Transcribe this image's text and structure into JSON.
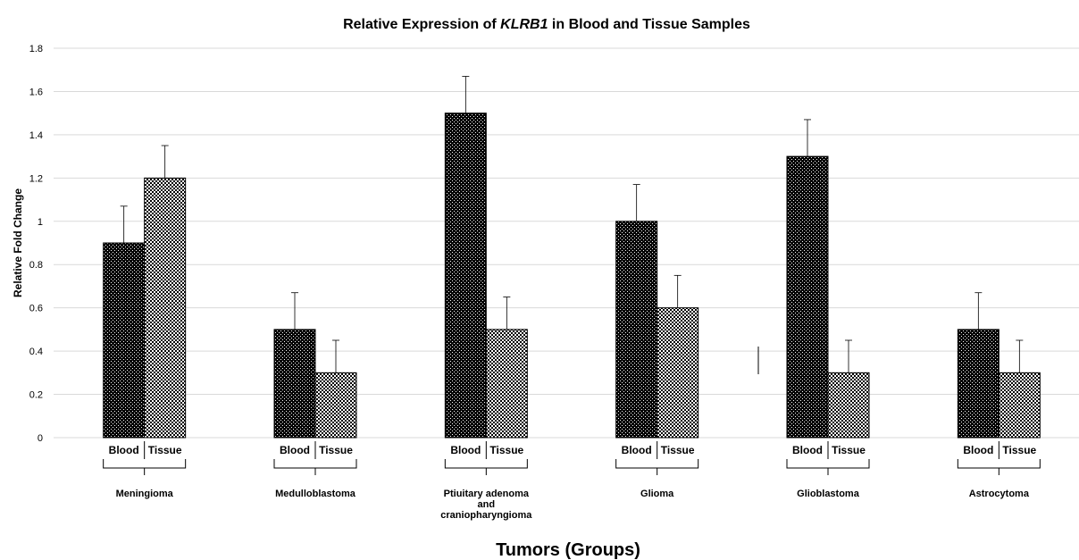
{
  "chart_data": {
    "type": "bar",
    "title_prefix": "Relative Expression of ",
    "title_gene": "KLRB1",
    "title_suffix": " in Blood and Tissue Samples",
    "xlabel": "Tumors (Groups)",
    "ylabel": "Relative Fold Change",
    "ylim": [
      0,
      1.8
    ],
    "yticks": [
      "0",
      "0.2",
      "0.4",
      "0.6",
      "0.8",
      "1",
      "1.2",
      "1.4",
      "1.6",
      "1.8"
    ],
    "grid": true,
    "legend": "none",
    "categories": [
      [
        "Meningioma"
      ],
      [
        "Medulloblastoma"
      ],
      [
        "Ptiuitary adenoma",
        "and",
        "craniopharyngioma"
      ],
      [
        "Glioma"
      ],
      [
        "Glioblastoma"
      ],
      [
        "Astrocytoma"
      ]
    ],
    "series": [
      {
        "name": "Blood",
        "values": [
          0.9,
          0.5,
          1.5,
          1.0,
          1.3,
          0.5
        ],
        "errors": [
          0.17,
          0.17,
          0.17,
          0.17,
          0.17,
          0.17
        ]
      },
      {
        "name": "Tissue",
        "values": [
          1.2,
          0.3,
          0.5,
          0.6,
          0.3,
          0.3
        ],
        "errors": [
          0.15,
          0.15,
          0.15,
          0.15,
          0.15,
          0.15
        ]
      }
    ]
  },
  "colors": {
    "gridline": "#d9d9d9",
    "bar_outline": "#000000",
    "error_bar": "#000000"
  }
}
